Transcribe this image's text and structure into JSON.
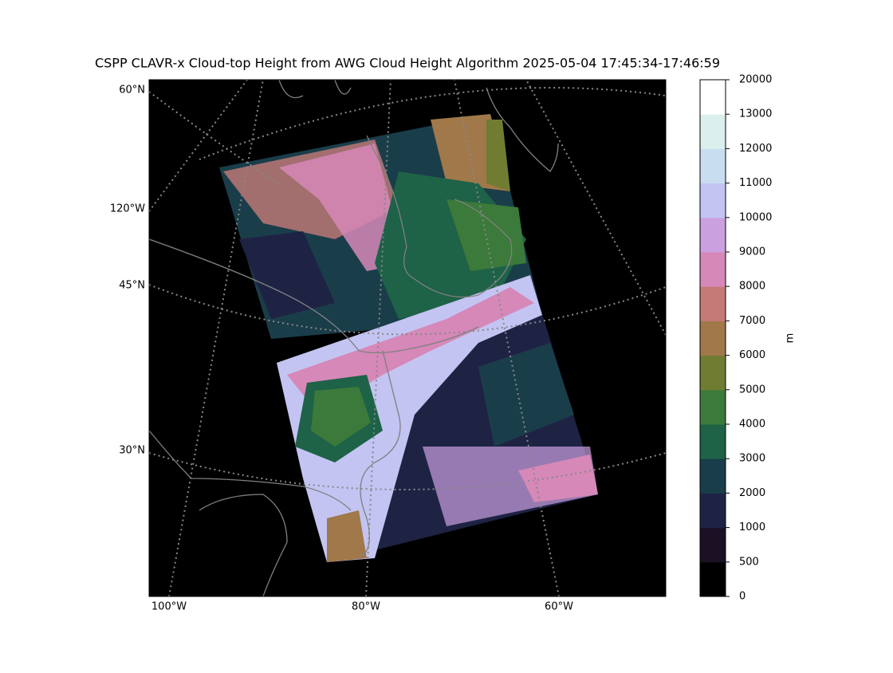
{
  "title": "CSPP CLAVR-x Cloud-top Height from AWG Cloud Height Algorithm 2025-05-04 17:45:34-17:46:59",
  "map": {
    "lat_labels": [
      "60°N",
      "120°W",
      "45°N",
      "30°N"
    ],
    "lon_labels": [
      "100°W",
      "80°W",
      "60°W"
    ]
  },
  "colorbar": {
    "label": "m",
    "ticks": [
      0,
      500,
      1000,
      2000,
      3000,
      4000,
      5000,
      6000,
      7000,
      8000,
      9000,
      10000,
      11000,
      12000,
      13000,
      20000
    ],
    "colors": [
      "#000000",
      "#1c1025",
      "#1e2344",
      "#1a3d4a",
      "#1e6248",
      "#3b7a3a",
      "#6f7c31",
      "#a0784a",
      "#c57a77",
      "#d688b8",
      "#cba0df",
      "#c3c4f2",
      "#c8ddf0",
      "#dbf0ec",
      "#ffffff"
    ]
  }
}
